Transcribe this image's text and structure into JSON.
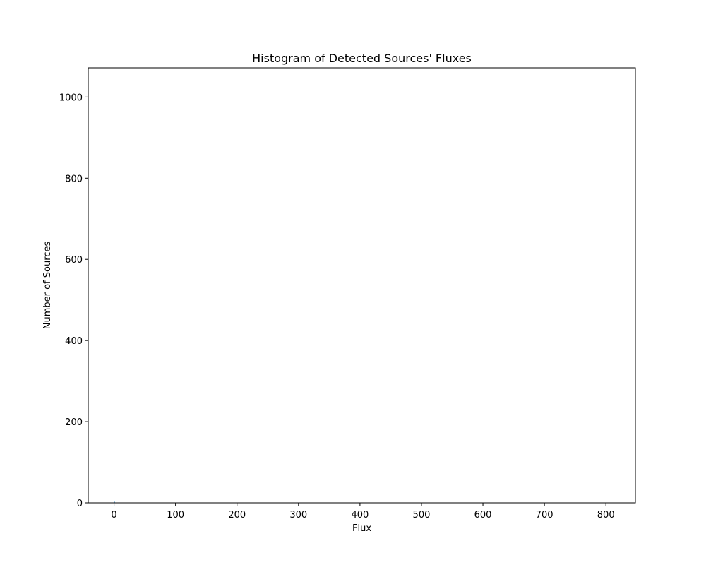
{
  "chart_data": {
    "type": "bar",
    "title": "Histogram of Detected Sources' Fluxes",
    "xlabel": "Flux",
    "ylabel": "Number of Sources",
    "xlim": [
      -42,
      848
    ],
    "ylim": [
      0,
      1072
    ],
    "xticks": [
      0,
      100,
      200,
      300,
      400,
      500,
      600,
      700,
      800
    ],
    "yticks": [
      0,
      200,
      400,
      600,
      800,
      1000
    ],
    "grid": false,
    "bars": [
      {
        "x0": 0,
        "x1": 1,
        "count": 3
      }
    ],
    "colors": {
      "bar": "#1f77b4",
      "axis": "#000000",
      "background": "#ffffff"
    }
  }
}
